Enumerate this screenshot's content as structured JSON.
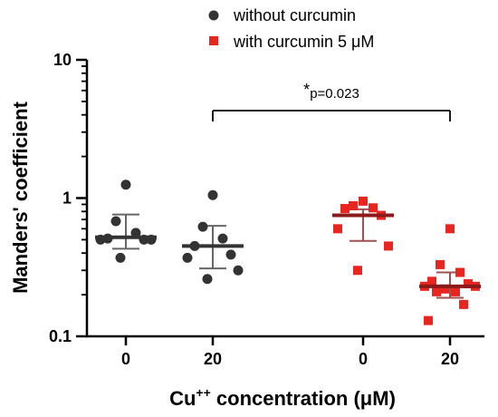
{
  "chart_data": {
    "type": "scatter",
    "ylabel": "Manders' coefficient",
    "xlabel_prefix": "Cu",
    "xlabel_superscript": "++",
    "xlabel_suffix": " concentration (μM)",
    "yscale": "log",
    "ylim": [
      0.1,
      10
    ],
    "y_ticks": [
      0.1,
      1,
      10
    ],
    "y_tick_labels": [
      "0.1",
      "1",
      "10"
    ],
    "categories": [
      "0",
      "20",
      "0",
      "20"
    ],
    "grid": false,
    "legend_position": "top",
    "series": [
      {
        "name": "without curcumin",
        "color": "#333333",
        "marker": "circle",
        "groups": [
          {
            "category_index": 0,
            "center": 0.52,
            "err_low": 0.43,
            "err_high": 0.76,
            "points": [
              1.25,
              0.68,
              0.56,
              0.51,
              0.5,
              0.5,
              0.5,
              0.37
            ]
          },
          {
            "category_index": 1,
            "center": 0.45,
            "err_low": 0.31,
            "err_high": 0.63,
            "points": [
              1.05,
              0.62,
              0.51,
              0.45,
              0.39,
              0.37,
              0.3,
              0.26
            ]
          }
        ]
      },
      {
        "name": "with curcumin 5 μM",
        "color": "#e8251f",
        "center_color": "#8b1a1a",
        "marker": "square",
        "groups": [
          {
            "category_index": 2,
            "center": 0.75,
            "err_low": 0.49,
            "err_high": 0.83,
            "points": [
              0.95,
              0.88,
              0.85,
              0.84,
              0.75,
              0.6,
              0.45,
              0.3
            ]
          },
          {
            "category_index": 3,
            "center": 0.23,
            "err_low": 0.19,
            "err_high": 0.29,
            "points": [
              0.6,
              0.33,
              0.29,
              0.25,
              0.24,
              0.23,
              0.23,
              0.22,
              0.21,
              0.21,
              0.17,
              0.13
            ]
          }
        ]
      }
    ],
    "annotations": [
      {
        "text": "p=0.023",
        "star": "*",
        "from_category_index": 1,
        "to_category_index": 3
      }
    ]
  }
}
